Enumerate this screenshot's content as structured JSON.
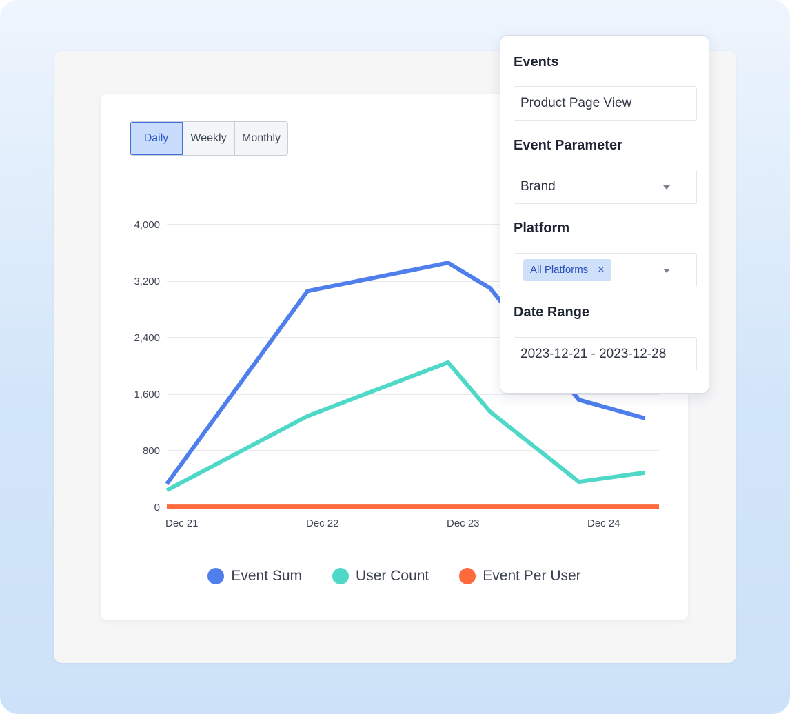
{
  "toolbar": {
    "periods": [
      {
        "label": "Daily",
        "active": true
      },
      {
        "label": "Weekly",
        "active": false
      },
      {
        "label": "Monthly",
        "active": false
      }
    ]
  },
  "chart_data": {
    "type": "line",
    "title": "",
    "xlabel": "",
    "ylabel": "",
    "ylim": [
      0,
      4000
    ],
    "y_ticks": [
      "0",
      "800",
      "1,600",
      "2,400",
      "3,200",
      "4,000"
    ],
    "y_tick_values": [
      0,
      800,
      1600,
      2400,
      3200,
      4000
    ],
    "x_tick_labels": [
      "Dec 21",
      "Dec 22",
      "Dec 23",
      "Dec 24"
    ],
    "x": [
      0,
      1,
      2,
      2.3,
      2.93,
      3.4
    ],
    "grid": true,
    "legend_placement": "bottom-center",
    "series": [
      {
        "name": "Event Sum",
        "color": "#4f7fec",
        "values": [
          330,
          3060,
          3460,
          3100,
          1520,
          1260
        ]
      },
      {
        "name": "User Count",
        "color": "#4fd8c8",
        "values": [
          240,
          1290,
          2050,
          1350,
          360,
          490
        ]
      },
      {
        "name": "Event Per User",
        "color": "#ff6a3d",
        "values": [
          8,
          8,
          8,
          8,
          8,
          8
        ]
      }
    ]
  },
  "filters": {
    "events": {
      "label": "Events",
      "value": "Product Page View"
    },
    "event_parameter": {
      "label": "Event Parameter",
      "value": "Brand"
    },
    "platform": {
      "label": "Platform",
      "chip": "All Platforms",
      "chip_close": "×"
    },
    "date_range": {
      "label": "Date Range",
      "value": "2023-12-21 - 2023-12-28"
    }
  },
  "icons": {
    "dropdown": "caret-down-icon",
    "chip_close": "close-icon",
    "legend_marker": "circle-icon"
  }
}
